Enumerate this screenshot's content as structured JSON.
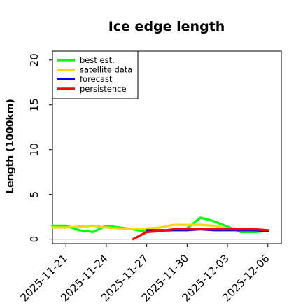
{
  "chart_data": {
    "type": "line",
    "title": "Ice edge length",
    "xlabel": "",
    "ylabel": "Length (1000km)",
    "ylim": [
      -0.5,
      21
    ],
    "yticks": [
      0,
      5,
      10,
      15,
      20
    ],
    "x_dates": [
      "2025-11-20",
      "2025-11-21",
      "2025-11-22",
      "2025-11-23",
      "2025-11-24",
      "2025-11-25",
      "2025-11-26",
      "2025-11-27",
      "2025-11-28",
      "2025-11-29",
      "2025-11-30",
      "2025-12-01",
      "2025-12-02",
      "2025-12-03",
      "2025-12-04",
      "2025-12-05",
      "2025-12-06"
    ],
    "xlim": [
      "2025-11-20",
      "2025-12-07"
    ],
    "xticks": [
      {
        "label": "2025-11-21",
        "date": "2025-11-21",
        "color": "#000000"
      },
      {
        "label": "2025-11-24",
        "date": "2025-11-24",
        "color": "#000000"
      },
      {
        "label": "2025-11-27",
        "date": "2025-11-27",
        "color": "#228B22"
      },
      {
        "label": "2025-11-30",
        "date": "2025-11-30",
        "color": "#000000"
      },
      {
        "label": "2025-12-03",
        "date": "2025-12-03",
        "color": "#000000"
      },
      {
        "label": "2025-12-06",
        "date": "2025-12-06",
        "color": "#000000"
      }
    ],
    "zero_line": true,
    "grid": false,
    "legend_position": "top-left",
    "series": [
      {
        "name": "best est.",
        "color": "#00ff00",
        "dates": [
          "2025-11-20",
          "2025-11-21",
          "2025-11-22",
          "2025-11-23",
          "2025-11-24",
          "2025-11-25",
          "2025-11-26",
          "2025-11-27",
          "2025-11-28",
          "2025-11-29",
          "2025-11-30",
          "2025-12-01",
          "2025-12-02",
          "2025-12-03",
          "2025-12-04",
          "2025-12-05",
          "2025-12-06"
        ],
        "values": [
          1.5,
          1.5,
          1.0,
          0.8,
          1.5,
          1.3,
          1.1,
          0.8,
          0.9,
          1.0,
          1.2,
          2.4,
          2.0,
          1.4,
          0.8,
          0.8,
          0.9
        ]
      },
      {
        "name": "satellite data",
        "color": "#ffd700",
        "dates": [
          "2025-11-20",
          "2025-11-21",
          "2025-11-22",
          "2025-11-23",
          "2025-11-24",
          "2025-11-25",
          "2025-11-26",
          "2025-11-27",
          "2025-11-28",
          "2025-11-29",
          "2025-11-30",
          "2025-12-01",
          "2025-12-02",
          "2025-12-03",
          "2025-12-04",
          "2025-12-05",
          "2025-12-06"
        ],
        "values": [
          1.3,
          1.3,
          1.4,
          1.5,
          1.3,
          1.2,
          1.1,
          1.2,
          1.3,
          1.6,
          1.6,
          1.6,
          1.5,
          1.2,
          1.1,
          1.1,
          1.0
        ]
      },
      {
        "name": "forecast",
        "color": "#0000ff",
        "dates": [
          "2025-11-27",
          "2025-11-28",
          "2025-11-29",
          "2025-11-30",
          "2025-12-01",
          "2025-12-02",
          "2025-12-03",
          "2025-12-04",
          "2025-12-05",
          "2025-12-06"
        ],
        "values": [
          1.0,
          1.0,
          1.0,
          1.0,
          1.1,
          1.0,
          1.0,
          1.0,
          1.0,
          0.9
        ]
      },
      {
        "name": "persistence",
        "color": "#ff0000",
        "dates": [
          "2025-11-26",
          "2025-11-27",
          "2025-11-28",
          "2025-11-29",
          "2025-11-30",
          "2025-12-01",
          "2025-12-02",
          "2025-12-03",
          "2025-12-04",
          "2025-12-05",
          "2025-12-06"
        ],
        "values": [
          0.0,
          0.8,
          0.9,
          1.1,
          1.1,
          1.1,
          1.1,
          1.1,
          1.1,
          1.1,
          1.0
        ]
      }
    ]
  }
}
